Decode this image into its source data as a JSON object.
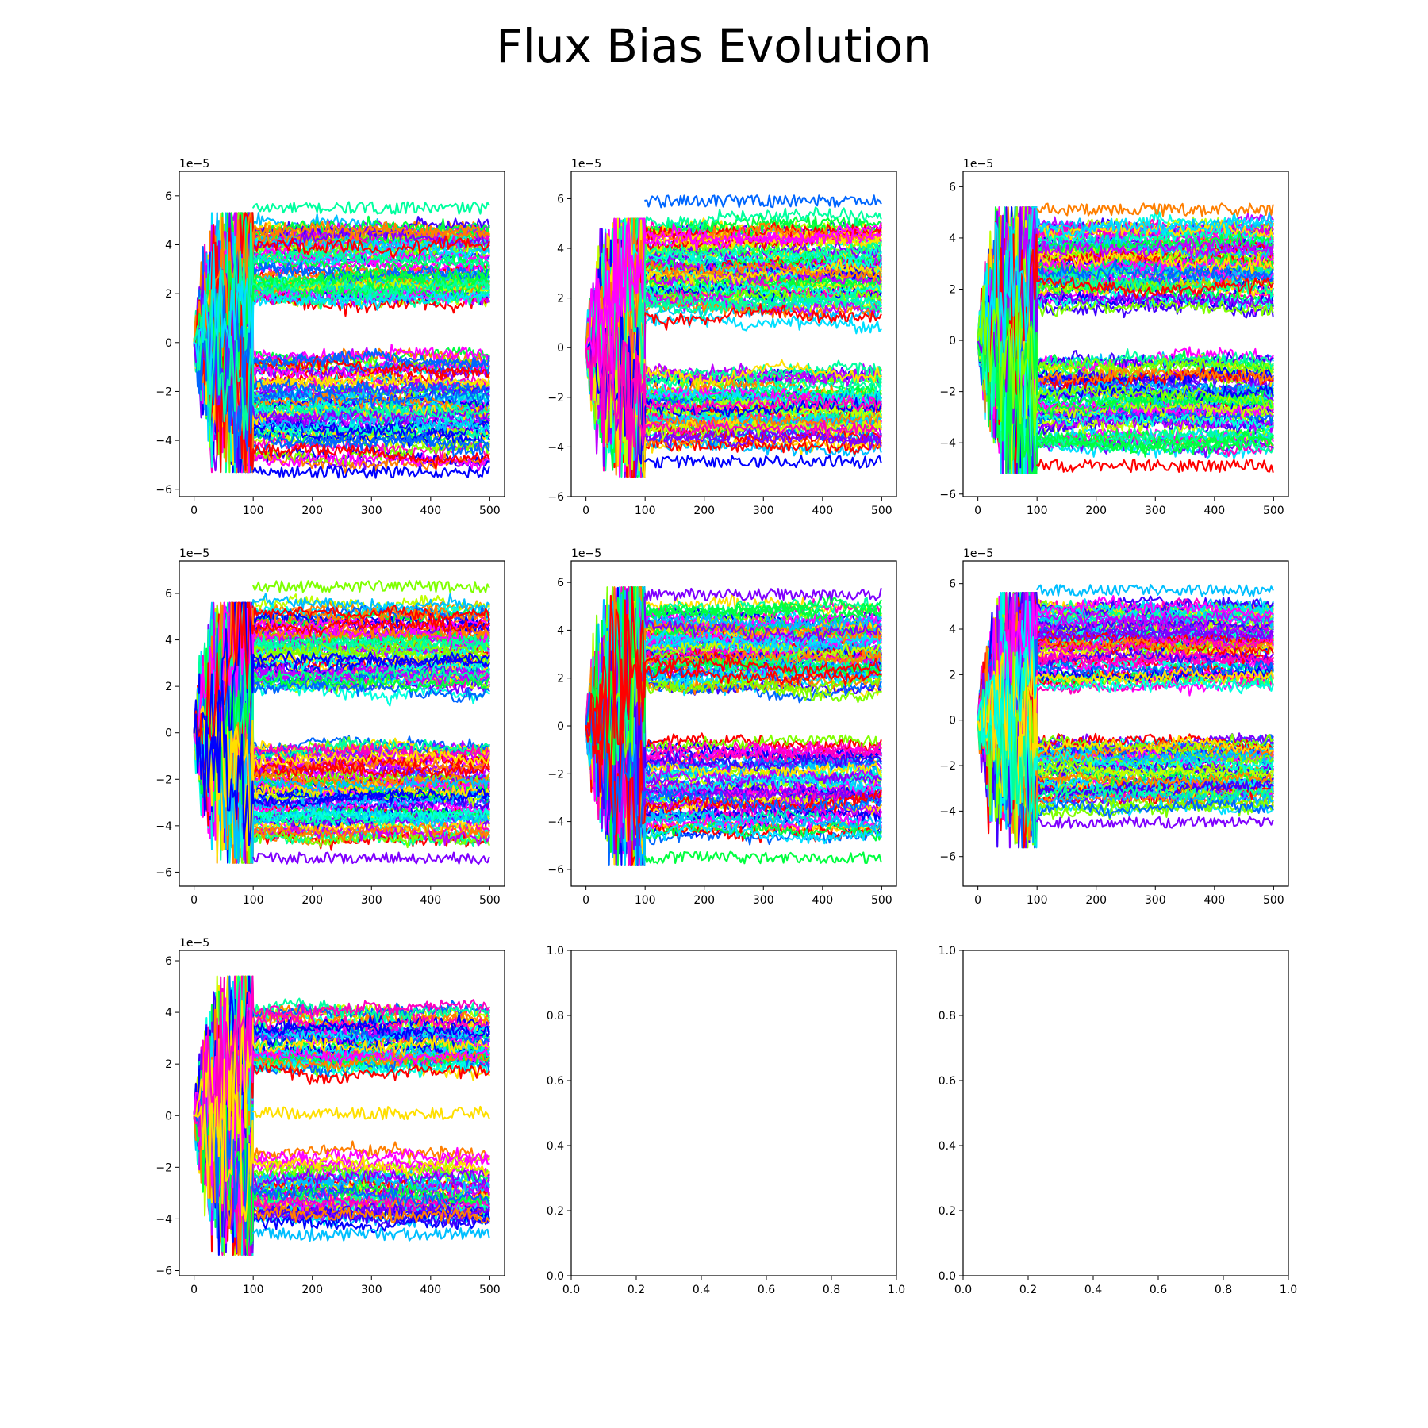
{
  "figure": {
    "title": "Flux Bias Evolution",
    "rows": 3,
    "cols": 3
  },
  "chart_data": [
    {
      "type": "line",
      "panel": 1,
      "title": "",
      "xlabel": "",
      "ylabel": "",
      "offset_text": "1e−5",
      "xlim": [
        -25,
        525
      ],
      "ylim": [
        -6.3,
        7.0
      ],
      "xticks": [
        0,
        100,
        200,
        300,
        400,
        500
      ],
      "xtick_labels": [
        "0",
        "100",
        "200",
        "300",
        "400",
        "500"
      ],
      "yticks": [
        -6,
        -4,
        -2,
        0,
        2,
        4,
        6
      ],
      "ytick_labels": [
        "−6",
        "−4",
        "−2",
        "0",
        "2",
        "4",
        "6"
      ],
      "series_count": 140,
      "x_range": [
        0,
        500
      ],
      "transition_x": 100,
      "upper_band": [
        1.0,
        5.6
      ],
      "lower_band": [
        -5.6,
        0.3
      ],
      "early_spread": 5.3,
      "extremes": [
        {
          "x": 500,
          "y": 5.5,
          "color": "#00ff9f"
        },
        {
          "x": 500,
          "y": -5.3,
          "color": "#0000ff"
        }
      ],
      "grid": false
    },
    {
      "type": "line",
      "panel": 2,
      "title": "",
      "xlabel": "",
      "ylabel": "",
      "offset_text": "1e−5",
      "xlim": [
        -25,
        525
      ],
      "ylim": [
        -6.0,
        7.1
      ],
      "xticks": [
        0,
        100,
        200,
        300,
        400,
        500
      ],
      "xtick_labels": [
        "0",
        "100",
        "200",
        "300",
        "400",
        "500"
      ],
      "yticks": [
        -6,
        -4,
        -2,
        0,
        2,
        4,
        6
      ],
      "ytick_labels": [
        "−6",
        "−4",
        "−2",
        "0",
        "2",
        "4",
        "6"
      ],
      "series_count": 140,
      "x_range": [
        0,
        500
      ],
      "transition_x": 100,
      "upper_band": [
        0.3,
        5.9
      ],
      "lower_band": [
        -4.6,
        -0.3
      ],
      "early_spread": 5.2,
      "extremes": [
        {
          "x": 500,
          "y": 5.9,
          "color": "#0066ff"
        },
        {
          "x": 500,
          "y": -4.6,
          "color": "#0000ff"
        }
      ],
      "grid": false
    },
    {
      "type": "line",
      "panel": 3,
      "title": "",
      "xlabel": "",
      "ylabel": "",
      "offset_text": "1e−5",
      "xlim": [
        -25,
        525
      ],
      "ylim": [
        -6.1,
        6.6
      ],
      "xticks": [
        0,
        100,
        200,
        300,
        400,
        500
      ],
      "xtick_labels": [
        "0",
        "100",
        "200",
        "300",
        "400",
        "500"
      ],
      "yticks": [
        -6,
        -4,
        -2,
        0,
        2,
        4,
        6
      ],
      "ytick_labels": [
        "−6",
        "−4",
        "−2",
        "0",
        "2",
        "4",
        "6"
      ],
      "series_count": 140,
      "x_range": [
        0,
        500
      ],
      "transition_x": 100,
      "upper_band": [
        0.4,
        5.2
      ],
      "lower_band": [
        -4.9,
        0.0
      ],
      "early_spread": 5.2,
      "extremes": [
        {
          "x": 500,
          "y": 5.1,
          "color": "#ff7f00"
        },
        {
          "x": 500,
          "y": -4.9,
          "color": "#ff0000"
        }
      ],
      "grid": false
    },
    {
      "type": "line",
      "panel": 4,
      "title": "",
      "xlabel": "",
      "ylabel": "",
      "offset_text": "1e−5",
      "xlim": [
        -25,
        525
      ],
      "ylim": [
        -6.6,
        7.4
      ],
      "xticks": [
        0,
        100,
        200,
        300,
        400,
        500
      ],
      "xtick_labels": [
        "0",
        "100",
        "200",
        "300",
        "400",
        "500"
      ],
      "yticks": [
        -6,
        -4,
        -2,
        0,
        2,
        4,
        6
      ],
      "ytick_labels": [
        "−6",
        "−4",
        "−2",
        "0",
        "2",
        "4",
        "6"
      ],
      "series_count": 140,
      "x_range": [
        0,
        500
      ],
      "transition_x": 100,
      "upper_band": [
        1.2,
        6.4
      ],
      "lower_band": [
        -5.5,
        0.4
      ],
      "early_spread": 5.6,
      "extremes": [
        {
          "x": 500,
          "y": 6.3,
          "color": "#7fff00"
        },
        {
          "x": 500,
          "y": -5.4,
          "color": "#7f00ff"
        }
      ],
      "grid": false
    },
    {
      "type": "line",
      "panel": 5,
      "title": "",
      "xlabel": "",
      "ylabel": "",
      "offset_text": "1e−5",
      "xlim": [
        -25,
        525
      ],
      "ylim": [
        -6.7,
        6.9
      ],
      "xticks": [
        0,
        100,
        200,
        300,
        400,
        500
      ],
      "xtick_labels": [
        "0",
        "100",
        "200",
        "300",
        "400",
        "500"
      ],
      "yticks": [
        -6,
        -4,
        -2,
        0,
        2,
        4,
        6
      ],
      "ytick_labels": [
        "−6",
        "−4",
        "−2",
        "0",
        "2",
        "4",
        "6"
      ],
      "series_count": 140,
      "x_range": [
        0,
        500
      ],
      "transition_x": 100,
      "upper_band": [
        0.8,
        5.8
      ],
      "lower_band": [
        -5.5,
        0.2
      ],
      "early_spread": 5.8,
      "extremes": [
        {
          "x": 500,
          "y": 5.5,
          "color": "#7f00ff"
        },
        {
          "x": 500,
          "y": -5.5,
          "color": "#00ff3f"
        }
      ],
      "grid": false
    },
    {
      "type": "line",
      "panel": 6,
      "title": "",
      "xlabel": "",
      "ylabel": "",
      "offset_text": "1e−5",
      "xlim": [
        -25,
        525
      ],
      "ylim": [
        -7.3,
        7.0
      ],
      "xticks": [
        0,
        100,
        200,
        300,
        400,
        500
      ],
      "xtick_labels": [
        "0",
        "100",
        "200",
        "300",
        "400",
        "500"
      ],
      "yticks": [
        -6,
        -4,
        -2,
        0,
        2,
        4,
        6
      ],
      "ytick_labels": [
        "−6",
        "−4",
        "−2",
        "0",
        "2",
        "4",
        "6"
      ],
      "series_count": 140,
      "x_range": [
        0,
        500
      ],
      "transition_x": 100,
      "upper_band": [
        0.6,
        5.8
      ],
      "lower_band": [
        -4.6,
        -0.3
      ],
      "early_spread": 5.6,
      "extremes": [
        {
          "x": 500,
          "y": 5.7,
          "color": "#00bfff"
        },
        {
          "x": 500,
          "y": -4.5,
          "color": "#7f00ff"
        }
      ],
      "grid": false
    },
    {
      "type": "line",
      "panel": 7,
      "title": "",
      "xlabel": "",
      "ylabel": "",
      "offset_text": "1e−5",
      "xlim": [
        -25,
        525
      ],
      "ylim": [
        -6.2,
        6.4
      ],
      "xticks": [
        0,
        100,
        200,
        300,
        400,
        500
      ],
      "xtick_labels": [
        "0",
        "100",
        "200",
        "300",
        "400",
        "500"
      ],
      "yticks": [
        -6,
        -4,
        -2,
        0,
        2,
        4,
        6
      ],
      "ytick_labels": [
        "−6",
        "−4",
        "−2",
        "0",
        "2",
        "4",
        "6"
      ],
      "series_count": 100,
      "x_range": [
        0,
        500
      ],
      "transition_x": 100,
      "upper_band": [
        1.3,
        4.6
      ],
      "lower_band": [
        -4.6,
        -1.0
      ],
      "early_spread": 5.4,
      "extremes": [
        {
          "x": 500,
          "y": 0.1,
          "color": "#ffdf00"
        },
        {
          "x": 500,
          "y": -4.6,
          "color": "#00bfff"
        }
      ],
      "grid": false
    },
    {
      "type": "line",
      "panel": 8,
      "title": "",
      "xlabel": "",
      "ylabel": "",
      "offset_text": "",
      "xlim": [
        0.0,
        1.0
      ],
      "ylim": [
        0.0,
        1.0
      ],
      "xticks": [
        0.0,
        0.2,
        0.4,
        0.6,
        0.8,
        1.0
      ],
      "xtick_labels": [
        "0.0",
        "0.2",
        "0.4",
        "0.6",
        "0.8",
        "1.0"
      ],
      "yticks": [
        0.0,
        0.2,
        0.4,
        0.6,
        0.8,
        1.0
      ],
      "ytick_labels": [
        "0.0",
        "0.2",
        "0.4",
        "0.6",
        "0.8",
        "1.0"
      ],
      "series_count": 0,
      "grid": false
    },
    {
      "type": "line",
      "panel": 9,
      "title": "",
      "xlabel": "",
      "ylabel": "",
      "offset_text": "",
      "xlim": [
        0.0,
        1.0
      ],
      "ylim": [
        0.0,
        1.0
      ],
      "xticks": [
        0.0,
        0.2,
        0.4,
        0.6,
        0.8,
        1.0
      ],
      "xtick_labels": [
        "0.0",
        "0.2",
        "0.4",
        "0.6",
        "0.8",
        "1.0"
      ],
      "yticks": [
        0.0,
        0.2,
        0.4,
        0.6,
        0.8,
        1.0
      ],
      "ytick_labels": [
        "0.0",
        "0.2",
        "0.4",
        "0.6",
        "0.8",
        "1.0"
      ],
      "series_count": 0,
      "grid": false
    }
  ]
}
